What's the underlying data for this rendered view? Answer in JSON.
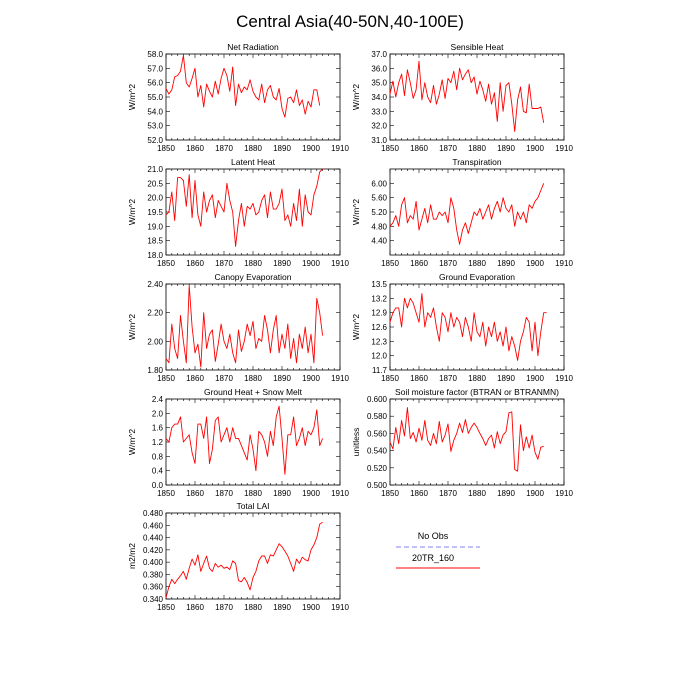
{
  "figure": {
    "title": "Central Asia(40-50N,40-100E)",
    "colors": {
      "series": "#ff0000",
      "obs": "#8080ff",
      "axis": "#000000"
    }
  },
  "legend": {
    "entries": [
      {
        "label": "No Obs",
        "color": "#8080ff",
        "style": "dashed"
      },
      {
        "label": "20TR_160",
        "color": "#ff0000",
        "style": "solid"
      }
    ]
  },
  "chart_data": [
    {
      "type": "line",
      "title": "Net Radiation",
      "ylabel": "W/m^2",
      "xlim": [
        1850,
        1910
      ],
      "ylim": [
        52.0,
        58.0
      ],
      "xticks": [
        1850,
        1860,
        1870,
        1880,
        1890,
        1900,
        1910
      ],
      "yticks": [
        "52.0",
        "53.0",
        "54.0",
        "55.0",
        "56.0",
        "57.0",
        "58.0"
      ],
      "series": [
        {
          "name": "20TR_160",
          "x_start": 1850,
          "x_step": 1,
          "values": [
            55.6,
            55.2,
            55.5,
            56.4,
            56.5,
            56.8,
            57.9,
            56.0,
            55.7,
            56.3,
            57.0,
            55.0,
            55.8,
            54.3,
            55.9,
            55.4,
            55.0,
            56.1,
            55.2,
            56.3,
            57.0,
            56.5,
            55.4,
            57.1,
            54.4,
            55.9,
            55.3,
            55.7,
            55.5,
            56.2,
            55.4,
            55.0,
            54.8,
            55.9,
            54.6,
            55.5,
            55.8,
            55.0,
            54.8,
            55.6,
            54.2,
            53.6,
            54.9,
            55.0,
            54.6,
            55.5,
            54.4,
            54.8,
            53.8,
            54.7,
            54.3,
            55.5,
            55.5,
            54.4
          ]
        }
      ]
    },
    {
      "type": "line",
      "title": "Sensible Heat",
      "ylabel": "W/m^2",
      "xlim": [
        1850,
        1910
      ],
      "ylim": [
        31.0,
        37.0
      ],
      "xticks": [
        1850,
        1860,
        1870,
        1880,
        1890,
        1900,
        1910
      ],
      "yticks": [
        "31.0",
        "32.0",
        "33.0",
        "34.0",
        "35.0",
        "36.0",
        "37.0"
      ],
      "series": [
        {
          "name": "20TR_160",
          "x_start": 1850,
          "x_step": 1,
          "values": [
            34.2,
            35.1,
            34.0,
            35.0,
            35.6,
            34.1,
            35.9,
            35.0,
            33.9,
            34.5,
            36.5,
            33.8,
            35.0,
            34.0,
            33.6,
            34.8,
            33.5,
            34.2,
            35.2,
            33.9,
            35.3,
            35.0,
            35.8,
            34.5,
            36.0,
            35.2,
            35.6,
            35.9,
            35.0,
            35.4,
            34.2,
            35.1,
            34.5,
            33.7,
            34.9,
            33.5,
            34.3,
            32.3,
            35.0,
            33.0,
            34.8,
            35.0,
            33.5,
            31.6,
            33.8,
            34.7,
            33.0,
            32.9,
            34.9,
            33.2,
            33.2,
            33.2,
            33.3,
            32.2
          ]
        }
      ]
    },
    {
      "type": "line",
      "title": "Latent Heat",
      "ylabel": "W/m^2",
      "xlim": [
        1850,
        1910
      ],
      "ylim": [
        18.0,
        21.0
      ],
      "xticks": [
        1850,
        1860,
        1870,
        1880,
        1890,
        1900,
        1910
      ],
      "yticks": [
        "18.0",
        "18.5",
        "19.0",
        "19.5",
        "20.0",
        "20.5",
        "21.0"
      ],
      "series": [
        {
          "name": "20TR_160",
          "x_start": 1850,
          "x_step": 1,
          "values": [
            19.4,
            19.5,
            20.2,
            19.2,
            20.7,
            20.7,
            20.6,
            19.7,
            20.8,
            19.3,
            20.6,
            19.4,
            19.0,
            20.2,
            19.5,
            19.9,
            20.1,
            19.3,
            19.9,
            19.7,
            19.5,
            20.5,
            19.9,
            19.5,
            18.3,
            19.2,
            19.8,
            19.0,
            19.7,
            19.6,
            19.8,
            19.4,
            19.5,
            19.9,
            20.1,
            19.3,
            20.2,
            19.6,
            19.6,
            19.8,
            20.3,
            19.2,
            19.4,
            19.0,
            19.8,
            19.2,
            20.3,
            19.0,
            20.1,
            19.5,
            19.4,
            20.1,
            20.4,
            20.9,
            21.0
          ]
        }
      ]
    },
    {
      "type": "line",
      "title": "Transpiration",
      "ylabel": "W/m^2",
      "xlim": [
        1850,
        1910
      ],
      "ylim": [
        4.0,
        6.4
      ],
      "xticks": [
        1850,
        1860,
        1870,
        1880,
        1890,
        1900,
        1910
      ],
      "yticks": [
        "4.40",
        "4.80",
        "5.20",
        "5.60",
        "6.00"
      ],
      "series": [
        {
          "name": "20TR_160",
          "x_start": 1850,
          "x_step": 1,
          "values": [
            4.8,
            4.9,
            5.1,
            4.8,
            5.4,
            5.6,
            4.9,
            5.1,
            5.0,
            5.5,
            4.7,
            5.0,
            5.3,
            4.9,
            5.4,
            5.0,
            5.0,
            5.2,
            5.1,
            5.2,
            4.9,
            5.6,
            5.3,
            4.7,
            4.3,
            4.7,
            4.9,
            4.6,
            4.9,
            5.2,
            5.1,
            5.3,
            5.0,
            5.2,
            5.4,
            5.0,
            5.3,
            5.5,
            5.2,
            5.6,
            5.3,
            5.2,
            5.4,
            4.8,
            5.2,
            5.0,
            5.2,
            4.9,
            5.4,
            5.3,
            5.5,
            5.6,
            5.8,
            6.0
          ]
        }
      ]
    },
    {
      "type": "line",
      "title": "Canopy Evaporation",
      "ylabel": "W/m^2",
      "xlim": [
        1850,
        1910
      ],
      "ylim": [
        1.8,
        2.4
      ],
      "xticks": [
        1850,
        1860,
        1870,
        1880,
        1890,
        1900,
        1910
      ],
      "yticks": [
        "1.80",
        "2.00",
        "2.20",
        "2.40"
      ],
      "series": [
        {
          "name": "20TR_160",
          "x_start": 1850,
          "x_step": 1,
          "values": [
            1.88,
            1.85,
            2.12,
            1.95,
            1.88,
            2.18,
            2.0,
            1.85,
            2.39,
            2.1,
            1.92,
            1.98,
            1.82,
            2.2,
            1.95,
            2.05,
            2.08,
            1.86,
            1.98,
            2.12,
            2.0,
            1.95,
            2.05,
            1.92,
            1.85,
            2.08,
            1.93,
            2.0,
            2.12,
            2.04,
            2.14,
            1.95,
            2.02,
            2.0,
            2.18,
            2.08,
            1.92,
            2.08,
            2.18,
            1.92,
            2.05,
            1.95,
            2.12,
            1.88,
            2.02,
            1.85,
            2.05,
            1.95,
            2.1,
            1.92,
            2.05,
            1.85,
            2.3,
            2.2,
            2.04
          ]
        }
      ]
    },
    {
      "type": "line",
      "title": "Ground Evaporation",
      "ylabel": "W/m^2",
      "xlim": [
        1850,
        1910
      ],
      "ylim": [
        11.7,
        13.5
      ],
      "xticks": [
        1850,
        1860,
        1870,
        1880,
        1890,
        1900,
        1910
      ],
      "yticks": [
        "11.7",
        "12.0",
        "12.3",
        "12.6",
        "12.9",
        "13.2",
        "13.5"
      ],
      "series": [
        {
          "name": "20TR_160",
          "x_start": 1850,
          "x_step": 1,
          "values": [
            12.7,
            12.9,
            13.0,
            13.0,
            12.6,
            13.2,
            13.0,
            13.2,
            13.1,
            12.9,
            12.7,
            13.3,
            12.6,
            12.9,
            12.8,
            13.0,
            12.6,
            12.3,
            12.9,
            12.8,
            12.5,
            12.9,
            12.6,
            12.8,
            12.7,
            12.4,
            12.8,
            12.6,
            12.3,
            12.9,
            12.5,
            12.4,
            12.7,
            12.2,
            12.6,
            12.4,
            12.7,
            12.3,
            12.5,
            12.2,
            12.6,
            12.1,
            12.4,
            12.2,
            11.9,
            12.3,
            12.5,
            12.8,
            12.7,
            12.1,
            12.7,
            12.0,
            12.5,
            12.9,
            12.9
          ]
        }
      ]
    },
    {
      "type": "line",
      "title": "Ground Heat + Snow Melt",
      "ylabel": "W/m^2",
      "xlim": [
        1850,
        1910
      ],
      "ylim": [
        0.0,
        2.4
      ],
      "xticks": [
        1850,
        1860,
        1870,
        1880,
        1890,
        1900,
        1910
      ],
      "yticks": [
        "0.0",
        "0.4",
        "0.8",
        "1.2",
        "1.6",
        "2.0",
        "2.4"
      ],
      "series": [
        {
          "name": "20TR_160",
          "x_start": 1850,
          "x_step": 1,
          "values": [
            1.3,
            1.2,
            1.6,
            1.7,
            1.7,
            1.9,
            1.2,
            1.3,
            1.4,
            0.9,
            0.6,
            1.7,
            1.7,
            1.3,
            1.9,
            0.6,
            1.0,
            1.8,
            1.9,
            1.2,
            1.4,
            1.6,
            1.2,
            1.6,
            1.3,
            1.3,
            1.1,
            0.9,
            0.7,
            1.4,
            1.0,
            0.4,
            1.5,
            1.4,
            1.2,
            0.8,
            1.5,
            1.1,
            1.9,
            2.2,
            1.3,
            0.3,
            1.4,
            1.4,
            1.9,
            1.1,
            1.3,
            1.6,
            1.1,
            1.5,
            1.4,
            1.6,
            2.1,
            1.1,
            1.3
          ]
        }
      ]
    },
    {
      "type": "line",
      "title": "Soil moisture factor (BTRAN or BTRANMN)",
      "ylabel": "unitless",
      "xlim": [
        1850,
        1910
      ],
      "ylim": [
        0.5,
        0.6
      ],
      "xticks": [
        1850,
        1860,
        1870,
        1880,
        1890,
        1900,
        1910
      ],
      "yticks": [
        "0.500",
        "0.520",
        "0.540",
        "0.560",
        "0.580",
        "0.600"
      ],
      "series": [
        {
          "name": "20TR_160",
          "x_start": 1850,
          "x_step": 1,
          "values": [
            0.55,
            0.542,
            0.567,
            0.548,
            0.575,
            0.557,
            0.59,
            0.554,
            0.561,
            0.55,
            0.566,
            0.552,
            0.575,
            0.552,
            0.546,
            0.56,
            0.548,
            0.574,
            0.55,
            0.558,
            0.571,
            0.539,
            0.552,
            0.56,
            0.572,
            0.561,
            0.576,
            0.56,
            0.567,
            0.572,
            0.567,
            0.56,
            0.554,
            0.546,
            0.554,
            0.558,
            0.543,
            0.562,
            0.548,
            0.558,
            0.562,
            0.584,
            0.585,
            0.518,
            0.516,
            0.57,
            0.54,
            0.556,
            0.543,
            0.558,
            0.538,
            0.53,
            0.544,
            0.545
          ]
        }
      ]
    },
    {
      "type": "line",
      "title": "Total LAI",
      "ylabel": "m2/m2",
      "xlim": [
        1850,
        1910
      ],
      "ylim": [
        0.34,
        0.48
      ],
      "xticks": [
        1850,
        1860,
        1870,
        1880,
        1890,
        1900,
        1910
      ],
      "yticks": [
        "0.340",
        "0.360",
        "0.380",
        "0.400",
        "0.420",
        "0.440",
        "0.460",
        "0.480"
      ],
      "series": [
        {
          "name": "20TR_160",
          "x_start": 1850,
          "x_step": 1,
          "values": [
            0.342,
            0.36,
            0.372,
            0.365,
            0.372,
            0.378,
            0.385,
            0.372,
            0.39,
            0.405,
            0.395,
            0.412,
            0.385,
            0.398,
            0.41,
            0.39,
            0.385,
            0.398,
            0.392,
            0.395,
            0.39,
            0.392,
            0.388,
            0.402,
            0.398,
            0.37,
            0.368,
            0.375,
            0.367,
            0.355,
            0.375,
            0.385,
            0.402,
            0.41,
            0.41,
            0.398,
            0.412,
            0.41,
            0.42,
            0.43,
            0.425,
            0.418,
            0.41,
            0.398,
            0.385,
            0.405,
            0.398,
            0.408,
            0.404,
            0.402,
            0.42,
            0.428,
            0.44,
            0.462,
            0.465
          ]
        }
      ]
    }
  ]
}
